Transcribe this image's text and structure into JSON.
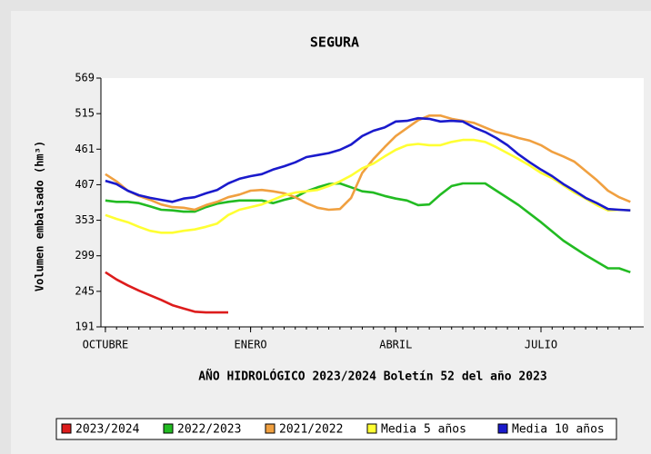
{
  "chart_data": {
    "type": "line",
    "title": "SEGURA",
    "xlabel": "AÑO HIDROLÓGICO 2023/2024 Boletín 52 del año 2023",
    "ylabel": "Volumen embalsado (hm³)",
    "x": [
      0,
      1,
      2,
      3,
      4,
      5,
      6,
      7,
      8,
      9,
      10,
      11,
      12,
      13,
      14,
      15,
      16,
      17,
      18,
      19,
      20,
      21,
      22,
      23,
      24,
      25,
      26,
      27,
      28,
      29,
      30,
      31,
      32,
      33,
      34,
      35,
      36,
      37,
      38,
      39,
      40,
      41,
      42,
      43,
      44,
      45,
      46,
      47
    ],
    "xlim": [
      -0.4,
      48.2
    ],
    "xticks": [
      {
        "value": 0,
        "label": "OCTUBRE"
      },
      {
        "value": 13,
        "label": "ENERO"
      },
      {
        "value": 26,
        "label": "ABRIL"
      },
      {
        "value": 39,
        "label": "JULIO"
      }
    ],
    "ylim": [
      191,
      569
    ],
    "yticks": [
      191,
      245,
      299,
      353,
      407,
      461,
      515,
      569
    ],
    "grid": false,
    "legend": "bottom",
    "series": [
      {
        "name": "2023/2024",
        "color": "#dd1c1c",
        "values": [
          274,
          263,
          254,
          246,
          239,
          232,
          224,
          219,
          214,
          213,
          213,
          213,
          null,
          null,
          null,
          null,
          null,
          null,
          null,
          null,
          null,
          null,
          null,
          null,
          null,
          null,
          null,
          null,
          null,
          null,
          null,
          null,
          null,
          null,
          null,
          null,
          null,
          null,
          null,
          null,
          null,
          null,
          null,
          null,
          null,
          null,
          null,
          null
        ]
      },
      {
        "name": "2022/2023",
        "color": "#22bb22",
        "values": [
          383,
          381,
          381,
          379,
          374,
          369,
          368,
          366,
          366,
          373,
          378,
          381,
          383,
          383,
          383,
          379,
          384,
          388,
          397,
          403,
          408,
          409,
          403,
          397,
          395,
          390,
          386,
          383,
          376,
          377,
          392,
          405,
          409,
          409,
          409,
          398,
          387,
          376,
          363,
          350,
          336,
          322,
          311,
          300,
          290,
          280,
          280,
          274
        ]
      },
      {
        "name": "2021/2022",
        "color": "#f0a040",
        "values": [
          423,
          412,
          398,
          390,
          384,
          377,
          373,
          372,
          369,
          376,
          381,
          388,
          392,
          398,
          399,
          397,
          394,
          388,
          379,
          372,
          369,
          370,
          387,
          425,
          446,
          464,
          481,
          493,
          505,
          512,
          512,
          507,
          504,
          501,
          494,
          487,
          483,
          478,
          474,
          467,
          457,
          450,
          442,
          428,
          414,
          398,
          388,
          381
        ]
      },
      {
        "name": "Media 5 años",
        "color": "#ffff33",
        "values": [
          361,
          355,
          350,
          343,
          337,
          334,
          334,
          337,
          339,
          343,
          348,
          361,
          369,
          373,
          377,
          384,
          391,
          395,
          397,
          399,
          405,
          412,
          421,
          432,
          439,
          450,
          460,
          467,
          469,
          467,
          467,
          472,
          475,
          475,
          472,
          464,
          455,
          446,
          436,
          425,
          417,
          406,
          395,
          386,
          376,
          368,
          369,
          368
        ]
      },
      {
        "name": "Media 10 años",
        "color": "#1a1acc",
        "values": [
          413,
          408,
          398,
          391,
          387,
          384,
          381,
          386,
          388,
          394,
          399,
          409,
          416,
          420,
          423,
          430,
          435,
          441,
          449,
          452,
          455,
          460,
          468,
          481,
          489,
          494,
          503,
          504,
          508,
          507,
          503,
          504,
          503,
          494,
          487,
          478,
          467,
          453,
          441,
          430,
          420,
          408,
          398,
          387,
          379,
          370,
          369,
          368
        ]
      }
    ]
  }
}
